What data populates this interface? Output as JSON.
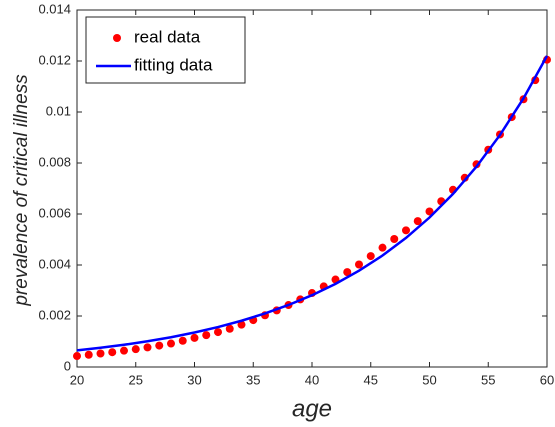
{
  "chart_data": {
    "type": "line",
    "xlabel": "age",
    "ylabel": "prevalence of critical illness",
    "xlim": [
      20,
      60
    ],
    "xticks": [
      20,
      25,
      30,
      35,
      40,
      45,
      50,
      55,
      60
    ],
    "ylim": [
      0,
      0.014
    ],
    "yticks": [
      0,
      0.002,
      0.004,
      0.006,
      0.008,
      0.01,
      0.012,
      0.014
    ],
    "grid": false,
    "legend": "upper left",
    "series": [
      {
        "name": "real data",
        "type": "scatter",
        "color": "#ff0000",
        "x": [
          20,
          21,
          22,
          23,
          24,
          25,
          26,
          27,
          28,
          29,
          30,
          31,
          32,
          33,
          34,
          35,
          36,
          37,
          38,
          39,
          40,
          41,
          42,
          43,
          44,
          45,
          46,
          47,
          48,
          49,
          50,
          51,
          52,
          53,
          54,
          55,
          56,
          57,
          58,
          59,
          60
        ],
        "values": [
          0.00043,
          0.00048,
          0.00053,
          0.00058,
          0.00064,
          0.0007,
          0.00077,
          0.00084,
          0.00092,
          0.00103,
          0.00114,
          0.00125,
          0.00137,
          0.0015,
          0.00166,
          0.00184,
          0.00203,
          0.00222,
          0.00243,
          0.00265,
          0.0029,
          0.00316,
          0.00343,
          0.00372,
          0.00402,
          0.00435,
          0.00468,
          0.00502,
          0.00536,
          0.00572,
          0.0061,
          0.0065,
          0.00695,
          0.00742,
          0.00795,
          0.00852,
          0.00912,
          0.0098,
          0.0105,
          0.01125,
          0.01205
        ]
      },
      {
        "name": "fitting data",
        "type": "line",
        "color": "#0000ff",
        "x": [
          20,
          22,
          24,
          26,
          28,
          30,
          32,
          34,
          36,
          38,
          40,
          42,
          44,
          46,
          48,
          50,
          52,
          54,
          56,
          58,
          60
        ],
        "values": [
          0.00065,
          0.000753,
          0.000871,
          0.001009,
          0.001168,
          0.001353,
          0.001566,
          0.001814,
          0.0021,
          0.002432,
          0.002816,
          0.003261,
          0.003776,
          0.004372,
          0.005062,
          0.005862,
          0.006787,
          0.007859,
          0.0091,
          0.010537,
          0.012201
        ]
      }
    ]
  }
}
